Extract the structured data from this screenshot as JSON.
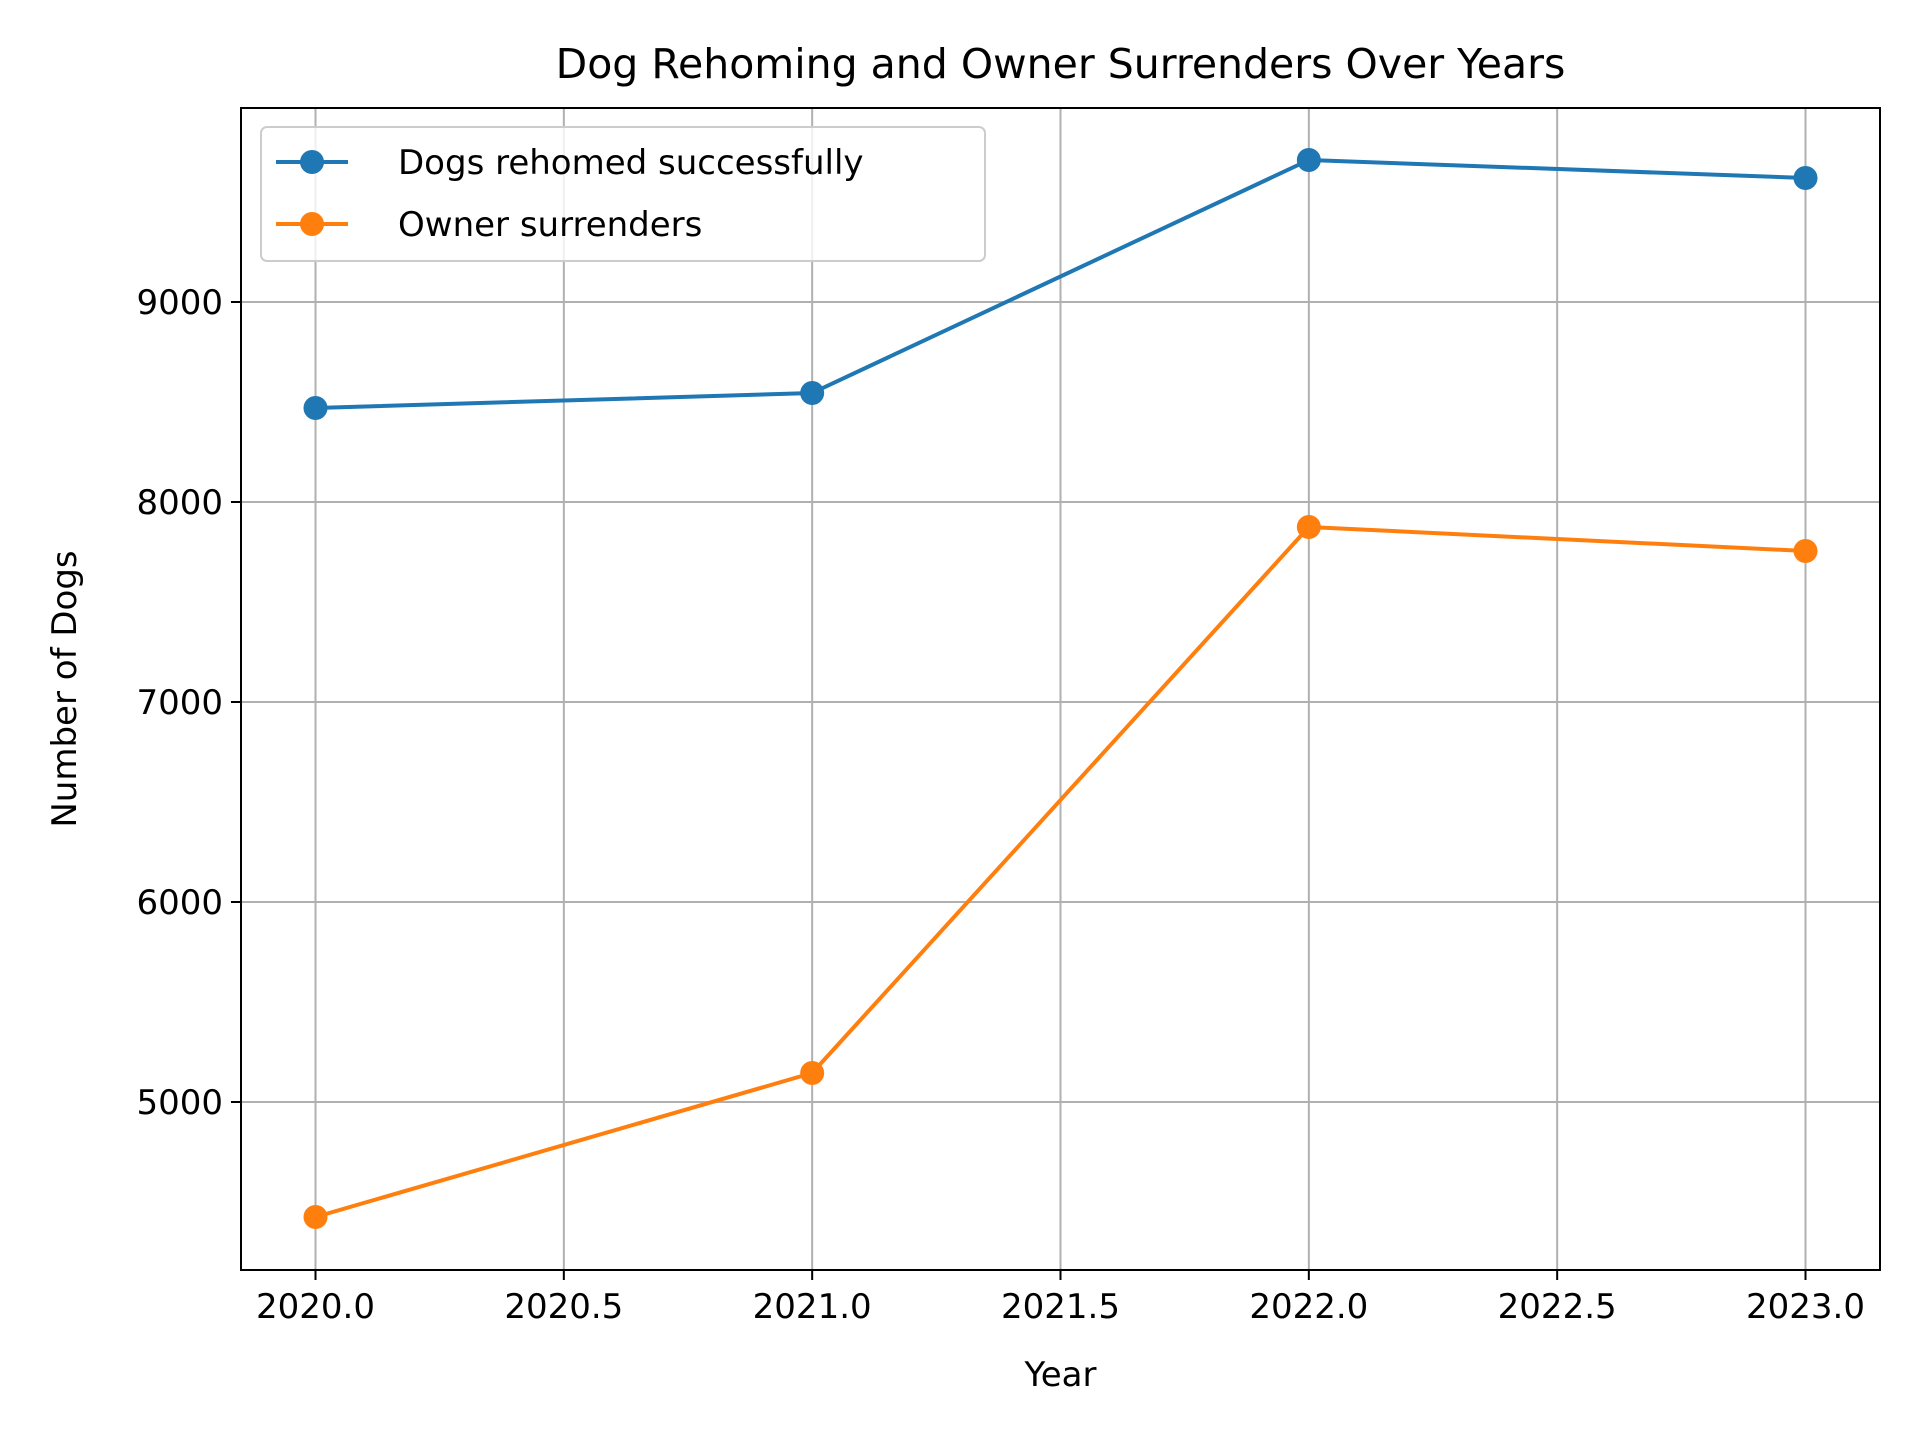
{
  "chart_data": {
    "type": "line",
    "title": "Dog Rehoming and Owner Surrenders Over Years",
    "xlabel": "Year",
    "ylabel": "Number of Dogs",
    "x": [
      2020,
      2021,
      2022,
      2023
    ],
    "series": [
      {
        "name": "Dogs rehomed successfully",
        "values": [
          8470,
          8545,
          9710,
          9620
        ],
        "color": "#1f77b4",
        "marker": "circle"
      },
      {
        "name": "Owner surrenders",
        "values": [
          4425,
          5145,
          7875,
          7755
        ],
        "color": "#ff7f0e",
        "marker": "circle"
      }
    ],
    "xlim": [
      2019.85,
      2023.15
    ],
    "ylim": [
      4160,
      9970
    ],
    "x_ticks": [
      2020.0,
      2020.5,
      2021.0,
      2021.5,
      2022.0,
      2022.5,
      2023.0
    ],
    "x_tick_labels": [
      "2020.0",
      "2020.5",
      "2021.0",
      "2021.5",
      "2022.0",
      "2022.5",
      "2023.0"
    ],
    "y_ticks": [
      5000,
      6000,
      7000,
      8000,
      9000
    ],
    "y_tick_labels": [
      "5000",
      "6000",
      "7000",
      "8000",
      "9000"
    ],
    "grid": true,
    "legend": "upper-left"
  }
}
